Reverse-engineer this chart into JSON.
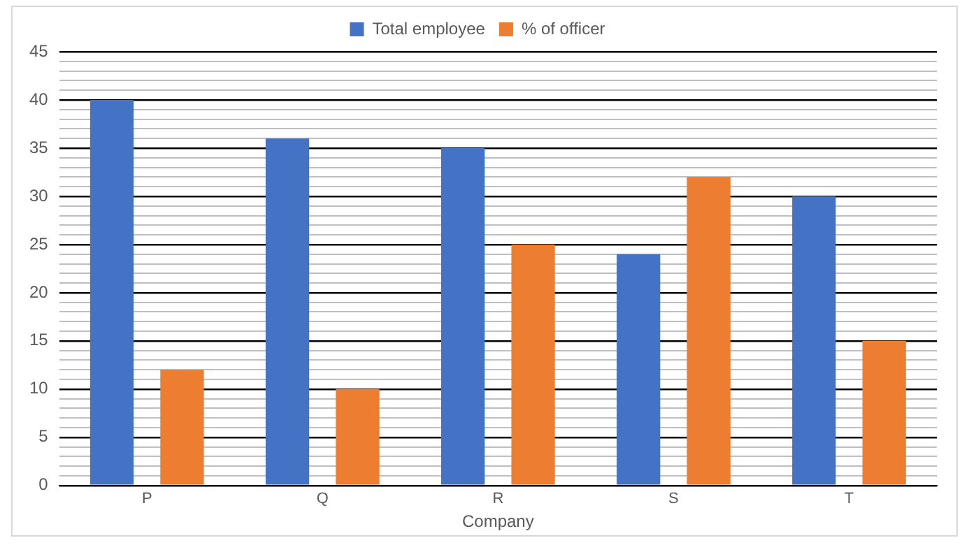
{
  "chart_data": {
    "type": "bar",
    "xlabel": "Company",
    "categories": [
      "P",
      "Q",
      "R",
      "S",
      "T"
    ],
    "series": [
      {
        "name": "Total employee",
        "color": "#4472c4",
        "values": [
          40,
          36,
          35,
          24,
          30
        ]
      },
      {
        "name": "% of officer",
        "color": "#ed7d31",
        "values": [
          12,
          10,
          25,
          32,
          15
        ]
      }
    ],
    "ylim": [
      0,
      45
    ],
    "yticks": [
      0,
      {
        "value": 1,
        "label": null
      },
      {
        "value": 2,
        "label": null
      },
      {
        "value": 3,
        "label": null
      },
      {
        "value": 4,
        "label": null
      },
      5,
      {
        "value": 6,
        "label": null
      },
      {
        "value": 7,
        "label": null
      },
      {
        "value": 8,
        "label": null
      },
      {
        "value": 9,
        "label": null
      },
      10,
      {
        "value": 11,
        "label": null
      },
      {
        "value": 12,
        "label": null
      },
      {
        "value": 13,
        "label": null
      },
      {
        "value": 14,
        "label": null
      },
      15,
      {
        "value": 16,
        "label": null
      },
      {
        "value": 17,
        "label": null
      },
      {
        "value": 18,
        "label": null
      },
      {
        "value": 19,
        "label": null
      },
      20,
      {
        "value": 21,
        "label": null
      },
      {
        "value": 22,
        "label": null
      },
      {
        "value": 23,
        "label": null
      },
      {
        "value": 24,
        "label": null
      },
      25,
      {
        "value": 26,
        "label": null
      },
      {
        "value": 27,
        "label": null
      },
      {
        "value": 28,
        "label": null
      },
      {
        "value": 29,
        "label": null
      },
      30,
      {
        "value": 31,
        "label": null
      },
      {
        "value": 32,
        "label": null
      },
      {
        "value": 33,
        "label": null
      },
      {
        "value": 34,
        "label": null
      },
      35,
      {
        "value": 36,
        "label": null
      },
      {
        "value": 37,
        "label": null
      },
      {
        "value": 38,
        "label": null
      },
      {
        "value": 39,
        "label": null
      },
      40,
      {
        "value": 41,
        "label": null
      },
      {
        "value": 42,
        "label": null
      },
      {
        "value": 43,
        "label": null
      },
      {
        "value": 44,
        "label": null
      },
      45
    ],
    "grid": "y",
    "legend": "top"
  }
}
